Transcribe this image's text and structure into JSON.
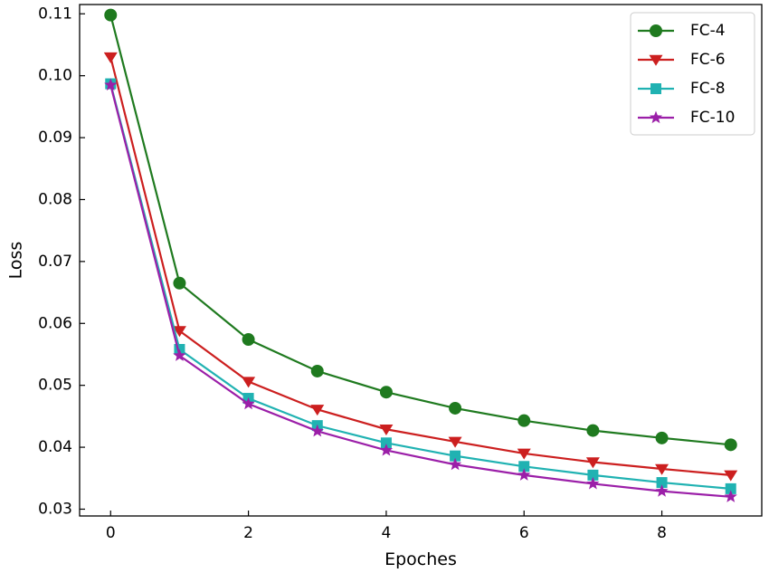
{
  "chart_data": {
    "type": "line",
    "title": "",
    "xlabel": "Epoches",
    "ylabel": "Loss",
    "x": [
      0,
      1,
      2,
      3,
      4,
      5,
      6,
      7,
      8,
      9
    ],
    "xlim": [
      -0.45,
      9.45
    ],
    "ylim": [
      0.0289,
      0.1115
    ],
    "xticks": [
      0,
      2,
      4,
      6,
      8
    ],
    "yticks": [
      0.03,
      0.04,
      0.05,
      0.06,
      0.07,
      0.08,
      0.09,
      0.1,
      0.11
    ],
    "xtick_labels": [
      "0",
      "2",
      "4",
      "6",
      "8"
    ],
    "ytick_labels": [
      "0.03",
      "0.04",
      "0.05",
      "0.06",
      "0.07",
      "0.08",
      "0.09",
      "0.10",
      "0.11"
    ],
    "grid": false,
    "legend_position": "top-right",
    "series": [
      {
        "name": "FC-4",
        "color": "#1f7a1f",
        "marker": "circle",
        "values": [
          0.1098,
          0.0665,
          0.0574,
          0.0523,
          0.0489,
          0.0463,
          0.0443,
          0.0427,
          0.0415,
          0.0404
        ]
      },
      {
        "name": "FC-6",
        "color": "#cc1f1f",
        "marker": "triangle-down",
        "values": [
          0.103,
          0.0588,
          0.0506,
          0.0461,
          0.0429,
          0.0409,
          0.039,
          0.0376,
          0.0365,
          0.0355
        ]
      },
      {
        "name": "FC-8",
        "color": "#20b2b2",
        "marker": "square",
        "values": [
          0.0987,
          0.0558,
          0.0479,
          0.0435,
          0.0407,
          0.0386,
          0.0369,
          0.0355,
          0.0343,
          0.0333
        ]
      },
      {
        "name": "FC-10",
        "color": "#9b1fa8",
        "marker": "star",
        "values": [
          0.0985,
          0.0548,
          0.047,
          0.0426,
          0.0395,
          0.0372,
          0.0355,
          0.0341,
          0.0329,
          0.032
        ]
      }
    ]
  }
}
